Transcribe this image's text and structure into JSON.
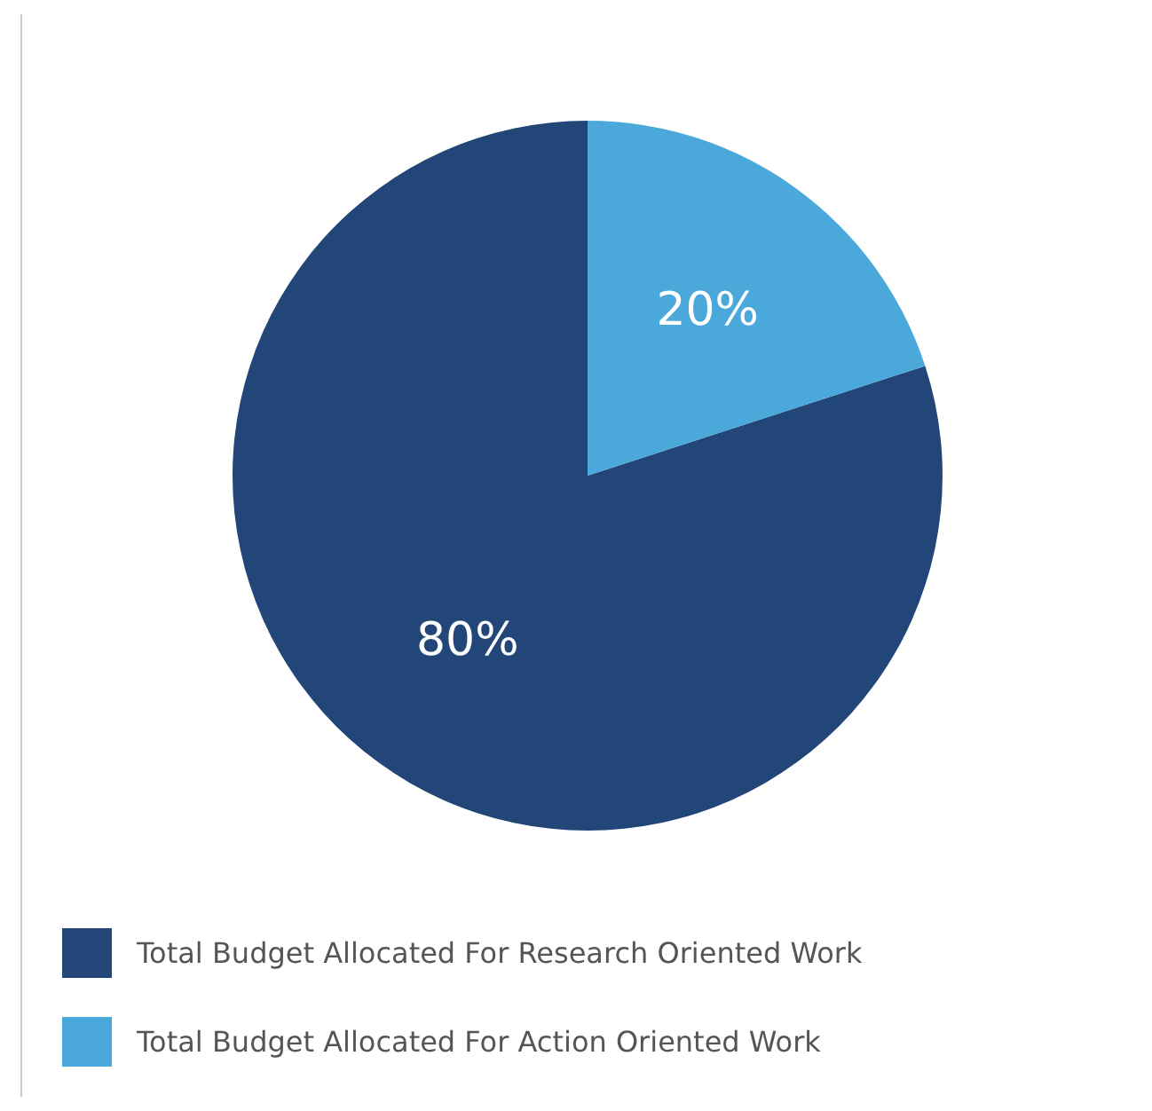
{
  "chart_data": {
    "type": "pie",
    "categories": [
      "Total Budget Allocated For Research Oriented Work",
      "Total Budget Allocated For Action Oriented Work"
    ],
    "values": [
      80,
      20
    ],
    "value_labels": [
      "80%",
      "20%"
    ],
    "colors": [
      "#214677",
      "#4aa8da"
    ],
    "legend": "bottom"
  }
}
